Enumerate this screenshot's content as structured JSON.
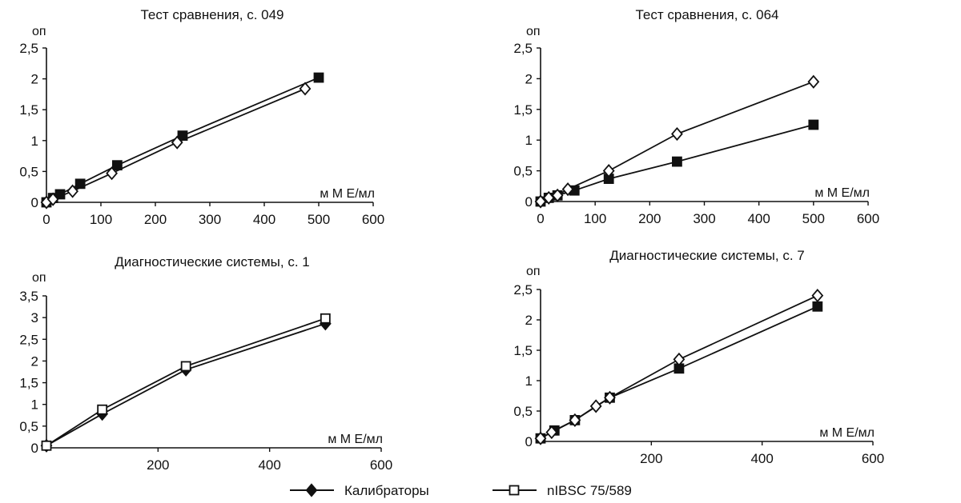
{
  "chart_data": [
    {
      "type": "line",
      "title": "Тест сравнения, с. 049",
      "ylabel": "оп",
      "xlabel": "м М Е/мл",
      "xlim": [
        0,
        600
      ],
      "ylim": [
        0,
        2.5
      ],
      "x_ticks": [
        0,
        100,
        200,
        300,
        400,
        500,
        600
      ],
      "x_tick_labels": [
        "0",
        "100",
        "200",
        "300",
        "400",
        "500",
        "600"
      ],
      "y_ticks": [
        0,
        0.5,
        1,
        1.5,
        2,
        2.5
      ],
      "y_tick_labels": [
        "0",
        "0,5",
        "1",
        "1,5",
        "2",
        "2,5"
      ],
      "series": [
        {
          "key": "s1",
          "marker": "square-filled",
          "x": [
            0,
            12,
            25,
            62,
            130,
            250,
            500
          ],
          "y": [
            0,
            0.07,
            0.13,
            0.3,
            0.6,
            1.08,
            2.02
          ]
        },
        {
          "key": "s2",
          "marker": "diamond-open",
          "x": [
            0,
            12,
            48,
            120,
            240,
            475
          ],
          "y": [
            0,
            0.05,
            0.18,
            0.47,
            0.97,
            1.84
          ]
        }
      ]
    },
    {
      "type": "line",
      "title": "Тест сравнения, с. 064",
      "ylabel": "оп",
      "xlabel": "м М Е/мл",
      "xlim": [
        0,
        600
      ],
      "ylim": [
        0,
        2.5
      ],
      "x_ticks": [
        0,
        100,
        200,
        300,
        400,
        500,
        600
      ],
      "x_tick_labels": [
        "0",
        "100",
        "200",
        "300",
        "400",
        "500",
        "600"
      ],
      "y_ticks": [
        0,
        0.5,
        1,
        1.5,
        2,
        2.5
      ],
      "y_tick_labels": [
        "0",
        "0,5",
        "1",
        "1,5",
        "2",
        "2,5"
      ],
      "series": [
        {
          "key": "s1",
          "marker": "square-filled",
          "x": [
            0,
            15,
            31,
            62,
            125,
            250,
            500
          ],
          "y": [
            0,
            0.06,
            0.1,
            0.18,
            0.37,
            0.65,
            1.25
          ]
        },
        {
          "key": "s2",
          "marker": "diamond-open",
          "x": [
            0,
            15,
            31,
            50,
            125,
            250,
            500
          ],
          "y": [
            0,
            0.06,
            0.1,
            0.2,
            0.5,
            1.1,
            1.95
          ]
        }
      ]
    },
    {
      "type": "line",
      "title": "Диагностические системы, с. 1",
      "ylabel": "оп",
      "xlabel": "м М Е/мл",
      "xlim": [
        0,
        600
      ],
      "ylim": [
        0,
        3.5
      ],
      "x_ticks": [
        200,
        400,
        600
      ],
      "x_tick_labels": [
        "200",
        "400",
        "600"
      ],
      "y_ticks": [
        0,
        0.5,
        1,
        1.5,
        2,
        2.5,
        3,
        3.5
      ],
      "y_tick_labels": [
        "0",
        "0,5",
        "1",
        "1,5",
        "2",
        "2,5",
        "3",
        "3,5"
      ],
      "series": [
        {
          "key": "calib",
          "marker": "diamond-filled",
          "x": [
            0,
            100,
            250,
            500
          ],
          "y": [
            0.05,
            0.78,
            1.8,
            2.86
          ]
        },
        {
          "key": "nibsc",
          "marker": "square-open",
          "x": [
            0,
            100,
            250,
            500
          ],
          "y": [
            0.05,
            0.88,
            1.88,
            2.98
          ]
        }
      ]
    },
    {
      "type": "line",
      "title": "Диагностические системы, с. 7",
      "ylabel": "оп",
      "xlabel": "м М Е/мл",
      "xlim": [
        0,
        600
      ],
      "ylim": [
        0,
        2.5
      ],
      "x_ticks": [
        200,
        400,
        600
      ],
      "x_tick_labels": [
        "200",
        "400",
        "600"
      ],
      "y_ticks": [
        0,
        0.5,
        1,
        1.5,
        2,
        2.5
      ],
      "y_tick_labels": [
        "0",
        "0,5",
        "1",
        "1,5",
        "2",
        "2,5"
      ],
      "series": [
        {
          "key": "s1",
          "marker": "square-filled",
          "x": [
            0,
            25,
            62,
            125,
            250,
            500
          ],
          "y": [
            0.05,
            0.18,
            0.35,
            0.72,
            1.2,
            2.22
          ]
        },
        {
          "key": "s2",
          "marker": "diamond-open",
          "x": [
            0,
            20,
            62,
            100,
            125,
            250,
            500
          ],
          "y": [
            0.05,
            0.15,
            0.35,
            0.58,
            0.72,
            1.35,
            2.4
          ]
        }
      ]
    }
  ],
  "legend": {
    "items": [
      {
        "label": "Калибраторы",
        "marker": "diamond-filled"
      },
      {
        "label": "nIBSC 75/589",
        "marker": "square-open"
      }
    ]
  }
}
